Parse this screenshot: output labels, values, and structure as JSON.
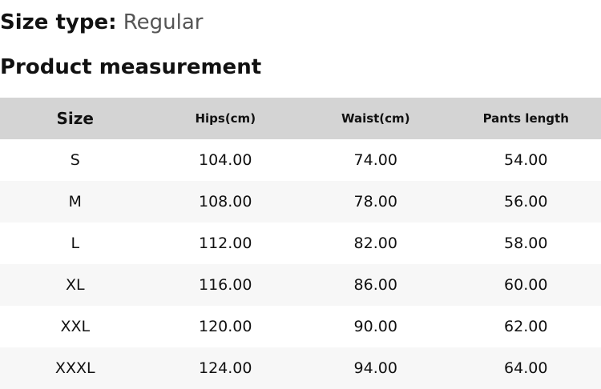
{
  "size_type": {
    "label": "Size type:",
    "value": "Regular"
  },
  "heading": "Product measurement",
  "table": {
    "headers": [
      "Size",
      "Hips(cm)",
      "Waist(cm)",
      "Pants length"
    ],
    "rows": [
      [
        "S",
        "104.00",
        "74.00",
        "54.00"
      ],
      [
        "M",
        "108.00",
        "78.00",
        "56.00"
      ],
      [
        "L",
        "112.00",
        "82.00",
        "58.00"
      ],
      [
        "XL",
        "116.00",
        "86.00",
        "60.00"
      ],
      [
        "XXL",
        "120.00",
        "90.00",
        "62.00"
      ],
      [
        "XXXL",
        "124.00",
        "94.00",
        "64.00"
      ]
    ]
  },
  "colors": {
    "header_bg": "#d4d4d4",
    "alt_row_bg": "#f7f7f7"
  }
}
